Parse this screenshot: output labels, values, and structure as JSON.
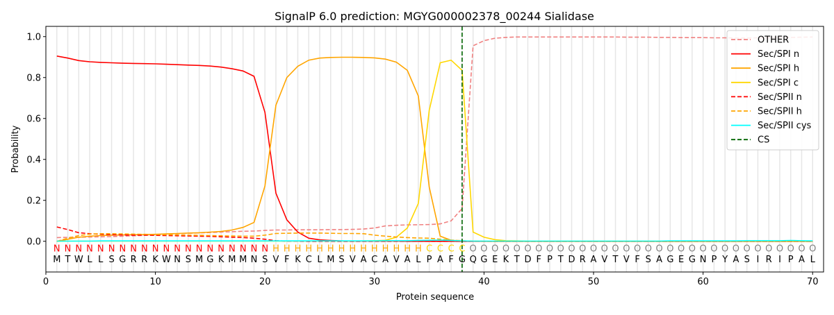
{
  "chart_data": {
    "type": "line",
    "title": "SignalP 6.0 prediction: MGYG000002378_00244 Sialidase",
    "xlabel": "Protein sequence",
    "ylabel": "Probability",
    "xlim": [
      0,
      71
    ],
    "ylim": [
      -0.15,
      1.05
    ],
    "xticks": [
      0,
      10,
      20,
      30,
      40,
      50,
      60,
      70
    ],
    "yticks": [
      0.0,
      0.2,
      0.4,
      0.6,
      0.8,
      1.0
    ],
    "legend_position": "top-right",
    "sequence": "MTWLLSGRRKWNSMGKMMNSVFKCLMSVACAVALPAFGQGEKTDFPTDRAVTVFSAGEGNPYASIRIPAL",
    "labels": "NNNNNNNNNNNNNNNNNNNNHHHHHHHHHHHHHHCCCCOOOOOOOOOOOOOOOOOOOOOOOOOOOOOOOO",
    "label_colors": {
      "N": "#ff0000",
      "H": "#ffa500",
      "C": "#ffd700",
      "O": "#808080"
    },
    "cleavage_site": 38,
    "series": [
      {
        "name": "OTHER",
        "color": "#f08080",
        "dash": true,
        "values": [
          0.018,
          0.019,
          0.02,
          0.021,
          0.022,
          0.023,
          0.025,
          0.027,
          0.029,
          0.032,
          0.035,
          0.037,
          0.039,
          0.041,
          0.043,
          0.045,
          0.047,
          0.049,
          0.05,
          0.053,
          0.055,
          0.055,
          0.056,
          0.056,
          0.056,
          0.057,
          0.057,
          0.058,
          0.06,
          0.065,
          0.075,
          0.078,
          0.08,
          0.081,
          0.082,
          0.085,
          0.1,
          0.16,
          0.955,
          0.98,
          0.992,
          0.996,
          0.998,
          0.998,
          0.998,
          0.998,
          0.998,
          0.998,
          0.998,
          0.998,
          0.998,
          0.998,
          0.997,
          0.997,
          0.997,
          0.996,
          0.996,
          0.995,
          0.995,
          0.995,
          0.994,
          0.994,
          0.993,
          0.993,
          0.994,
          0.995,
          0.996,
          0.996,
          0.997,
          0.998
        ]
      },
      {
        "name": "Sec/SPI n",
        "color": "#ff0000",
        "dash": false,
        "values": [
          0.905,
          0.895,
          0.883,
          0.877,
          0.874,
          0.872,
          0.87,
          0.869,
          0.868,
          0.867,
          0.865,
          0.863,
          0.861,
          0.859,
          0.856,
          0.851,
          0.843,
          0.832,
          0.806,
          0.63,
          0.235,
          0.105,
          0.045,
          0.015,
          0.007,
          0.004,
          0.002,
          0.001,
          0.001,
          0.001,
          0.001,
          0.001,
          0,
          0,
          0,
          0,
          0,
          0,
          0,
          0,
          0,
          0,
          0,
          0,
          0,
          0,
          0,
          0,
          0,
          0,
          0,
          0,
          0,
          0,
          0,
          0,
          0,
          0,
          0,
          0,
          0,
          0,
          0,
          0,
          0,
          0,
          0,
          0,
          0,
          0
        ]
      },
      {
        "name": "Sec/SPI h",
        "color": "#ffa500",
        "dash": false,
        "values": [
          0.0,
          0.01,
          0.02,
          0.025,
          0.028,
          0.03,
          0.031,
          0.032,
          0.033,
          0.034,
          0.036,
          0.038,
          0.04,
          0.042,
          0.045,
          0.048,
          0.055,
          0.068,
          0.092,
          0.27,
          0.665,
          0.8,
          0.855,
          0.885,
          0.895,
          0.898,
          0.899,
          0.899,
          0.898,
          0.896,
          0.89,
          0.875,
          0.835,
          0.71,
          0.265,
          0.025,
          0.005,
          0.002,
          0.001,
          0.001,
          0,
          0,
          0,
          0,
          0,
          0,
          0,
          0,
          0,
          0,
          0,
          0,
          0,
          0,
          0,
          0,
          0,
          0,
          0,
          0,
          0,
          0,
          0,
          0,
          0,
          0,
          0,
          0,
          0,
          0
        ]
      },
      {
        "name": "Sec/SPI c",
        "color": "#ffd700",
        "dash": false,
        "values": [
          0,
          0.001,
          0.001,
          0.001,
          0.001,
          0.001,
          0.001,
          0.001,
          0.001,
          0.001,
          0.001,
          0.001,
          0.001,
          0.001,
          0.001,
          0.001,
          0.001,
          0.001,
          0.001,
          0.001,
          0.001,
          0.001,
          0.001,
          0.001,
          0.001,
          0.001,
          0.001,
          0.001,
          0.002,
          0.003,
          0.005,
          0.02,
          0.065,
          0.185,
          0.64,
          0.872,
          0.885,
          0.835,
          0.045,
          0.02,
          0.008,
          0.003,
          0.002,
          0.001,
          0.001,
          0.001,
          0.001,
          0.001,
          0.001,
          0.001,
          0.001,
          0.001,
          0.001,
          0.001,
          0.001,
          0.001,
          0.001,
          0.001,
          0.001,
          0.001,
          0.001,
          0.001,
          0.001,
          0.001,
          0.001,
          0.001,
          0.001,
          0.001,
          0.001,
          0.001
        ]
      },
      {
        "name": "Sec/SPII n",
        "color": "#ff0000",
        "dash": true,
        "values": [
          0.07,
          0.057,
          0.042,
          0.037,
          0.034,
          0.032,
          0.031,
          0.03,
          0.03,
          0.029,
          0.028,
          0.027,
          0.026,
          0.025,
          0.024,
          0.022,
          0.02,
          0.018,
          0.015,
          0.01,
          0.003,
          0.001,
          0.001,
          0,
          0,
          0,
          0,
          0,
          0,
          0,
          0,
          0,
          0,
          0,
          0,
          0,
          0,
          0,
          0,
          0,
          0,
          0,
          0,
          0,
          0,
          0,
          0,
          0,
          0,
          0,
          0,
          0,
          0,
          0,
          0,
          0,
          0,
          0,
          0,
          0,
          0,
          0,
          0,
          0,
          0,
          0,
          0,
          0,
          0,
          0
        ]
      },
      {
        "name": "Sec/SPII h",
        "color": "#ffa500",
        "dash": true,
        "values": [
          0.0,
          0.015,
          0.028,
          0.035,
          0.037,
          0.037,
          0.036,
          0.035,
          0.034,
          0.033,
          0.032,
          0.031,
          0.03,
          0.029,
          0.028,
          0.027,
          0.026,
          0.025,
          0.025,
          0.03,
          0.038,
          0.039,
          0.04,
          0.04,
          0.04,
          0.039,
          0.038,
          0.038,
          0.037,
          0.03,
          0.025,
          0.021,
          0.018,
          0.016,
          0.015,
          0.01,
          0.006,
          0.003,
          0.001,
          0,
          0,
          0,
          0,
          0,
          0,
          0,
          0,
          0,
          0,
          0,
          0,
          0,
          0,
          0,
          0,
          0,
          0,
          0,
          0,
          0,
          0,
          0,
          0,
          0,
          0,
          0,
          0,
          0,
          0,
          0
        ]
      },
      {
        "name": "Sec/SPII cys",
        "color": "#00ffff",
        "dash": false,
        "values": [
          0.001,
          0.001,
          0.001,
          0.001,
          0.002,
          0.002,
          0.002,
          0.002,
          0.002,
          0.002,
          0.002,
          0.002,
          0.002,
          0.002,
          0.002,
          0.002,
          0.002,
          0.002,
          0.002,
          0.002,
          0.002,
          0.002,
          0.002,
          0.002,
          0.002,
          0.002,
          0.002,
          0.002,
          0.002,
          0.002,
          0.003,
          0.003,
          0.003,
          0.004,
          0.005,
          0.006,
          0.004,
          0.002,
          0.001,
          0.001,
          0.001,
          0.001,
          0.001,
          0.001,
          0.001,
          0.001,
          0.001,
          0.001,
          0.001,
          0.001,
          0.001,
          0.001,
          0.001,
          0.001,
          0.001,
          0.001,
          0.002,
          0.002,
          0.002,
          0.002,
          0.002,
          0.002,
          0.002,
          0.003,
          0.003,
          0.003,
          0.003,
          0.004,
          0.003,
          0.002
        ]
      },
      {
        "name": "CS",
        "color": "#006400",
        "dash": true,
        "values": []
      }
    ]
  }
}
